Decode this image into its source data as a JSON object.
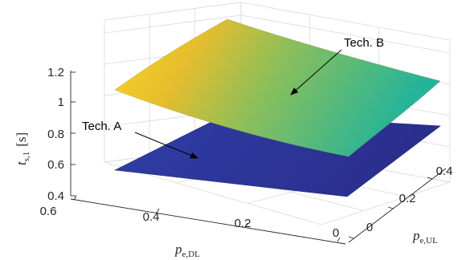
{
  "chart_data": {
    "type": "surface",
    "xlabel": "p",
    "xlabel_sub": "e,DL",
    "ylabel": "p",
    "ylabel_sub": "e,UL",
    "zlabel": "t",
    "zlabel_sub": "s,1",
    "zlabel_unit": "[s]",
    "x_ticks": [
      "0",
      "0.2",
      "0.4",
      "0.6"
    ],
    "y_ticks": [
      "0",
      "0.2",
      "0.4"
    ],
    "z_ticks": [
      "0.4",
      "0.6",
      "0.8",
      "1",
      "1.2"
    ],
    "xlim": [
      0,
      0.6
    ],
    "ylim": [
      0,
      0.5
    ],
    "zlim": [
      0.4,
      1.3
    ],
    "grid": true,
    "colormap": "parula",
    "series": [
      {
        "name": "Tech. A",
        "x": [
          0.0,
          0.25,
          0.5
        ],
        "y": [
          0.0,
          0.25,
          0.5
        ],
        "z": [
          [
            0.5,
            0.52,
            0.53
          ],
          [
            0.56,
            0.57,
            0.58
          ],
          [
            0.62,
            0.63,
            0.64
          ]
        ]
      },
      {
        "name": "Tech. B",
        "x": [
          0.0,
          0.25,
          0.5
        ],
        "y": [
          0.0,
          0.25,
          0.5
        ],
        "z": [
          [
            0.8,
            0.84,
            0.87
          ],
          [
            0.94,
            0.99,
            1.04
          ],
          [
            1.08,
            1.15,
            1.21
          ]
        ]
      }
    ],
    "annotations": [
      {
        "text": "Tech. A",
        "target": "Tech. A"
      },
      {
        "text": "Tech. B",
        "target": "Tech. B"
      }
    ]
  }
}
